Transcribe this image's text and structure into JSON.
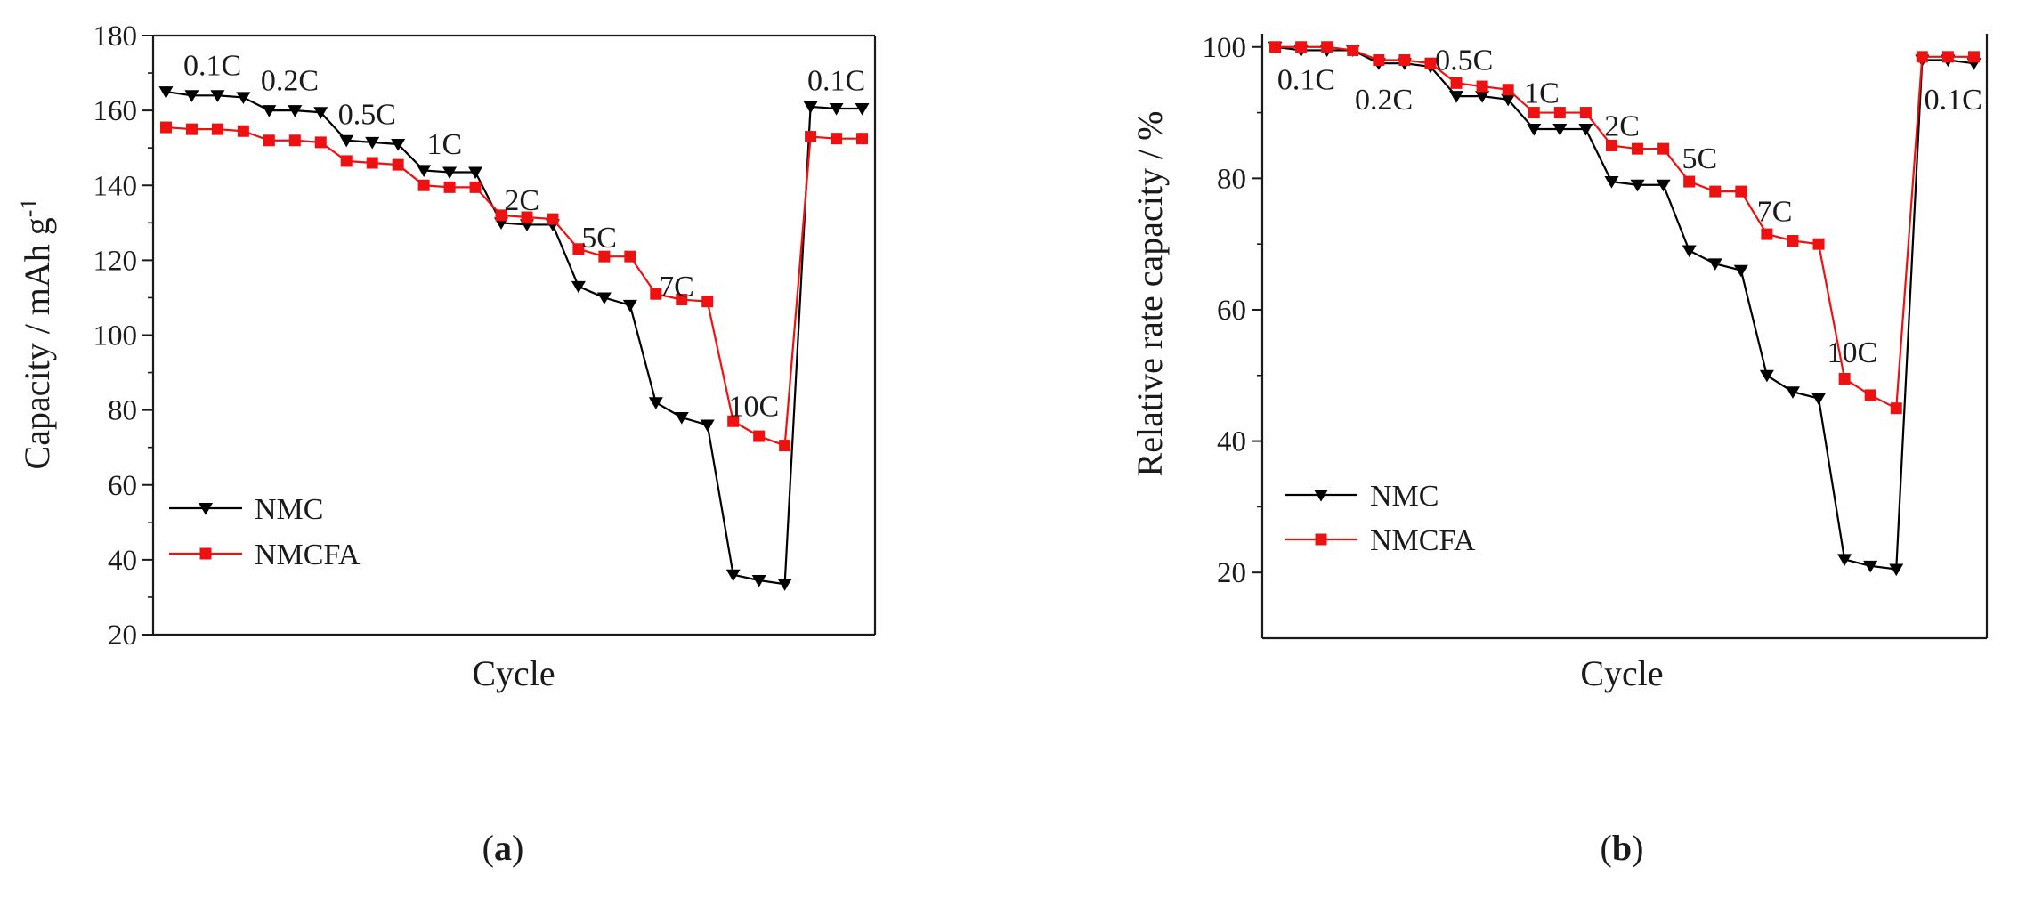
{
  "figure_labels": [
    {
      "open": "(",
      "letter": "a",
      "close": ")"
    },
    {
      "open": "(",
      "letter": "b",
      "close": ")"
    }
  ],
  "chart_data": [
    {
      "type": "line",
      "panel": "a",
      "title": "",
      "xlabel": "Cycle",
      "ylabel": "Capacity / mAh g",
      "ylabel_superscript": "-1",
      "ylim": [
        20,
        180
      ],
      "yticks": [
        20,
        40,
        60,
        80,
        100,
        120,
        140,
        160,
        180
      ],
      "ytick_labels": [
        "20",
        "40",
        "60",
        "80",
        "100",
        "120",
        "140",
        "160",
        "180"
      ],
      "xlim": [
        0.5,
        28.5
      ],
      "x_ticks_labeled": false,
      "grid": false,
      "legend_position": "lower-left",
      "x": [
        1,
        2,
        3,
        4,
        5,
        6,
        7,
        8,
        9,
        10,
        11,
        12,
        13,
        14,
        15,
        16,
        17,
        18,
        19,
        20,
        21,
        22,
        23,
        24,
        25,
        26,
        27,
        28
      ],
      "series": [
        {
          "name": "NMC",
          "color": "#000000",
          "marker": "triangle-down",
          "values": [
            165,
            164,
            164,
            163.5,
            160,
            160,
            159.5,
            152,
            151.5,
            151,
            144,
            143.5,
            143.5,
            130,
            129.5,
            129.5,
            113,
            110,
            108,
            82,
            78,
            76,
            36,
            34.5,
            33.5,
            161,
            160.5,
            160.5
          ]
        },
        {
          "name": "NMCFA",
          "color": "#ee1111",
          "marker": "square",
          "values": [
            155.5,
            155,
            155,
            154.5,
            152,
            152,
            151.5,
            146.5,
            146,
            145.5,
            140,
            139.5,
            139.5,
            132,
            131.5,
            131,
            123,
            121,
            121,
            111,
            109.5,
            109,
            77,
            73,
            70.5,
            153,
            152.5,
            152.5
          ]
        }
      ],
      "annotations": [
        {
          "text": "0.1C",
          "x": 2.8,
          "y": 172
        },
        {
          "text": "0.2C",
          "x": 5.8,
          "y": 168
        },
        {
          "text": "0.5C",
          "x": 8.8,
          "y": 159
        },
        {
          "text": "1C",
          "x": 11.8,
          "y": 151
        },
        {
          "text": "2C",
          "x": 14.8,
          "y": 136
        },
        {
          "text": "5C",
          "x": 17.8,
          "y": 126
        },
        {
          "text": "7C",
          "x": 20.8,
          "y": 113
        },
        {
          "text": "10C",
          "x": 23.8,
          "y": 81
        },
        {
          "text": "0.1C",
          "x": 27.0,
          "y": 168
        }
      ]
    },
    {
      "type": "line",
      "panel": "b",
      "title": "",
      "xlabel": "Cycle",
      "ylabel": "Relative rate capacity / %",
      "ylim": [
        10,
        102
      ],
      "yticks": [
        20,
        40,
        60,
        80,
        100
      ],
      "ytick_labels": [
        "20",
        "40",
        "60",
        "80",
        "100"
      ],
      "xlim": [
        0.5,
        28.5
      ],
      "x_ticks_labeled": false,
      "grid": false,
      "legend_position": "lower-left",
      "x": [
        1,
        2,
        3,
        4,
        5,
        6,
        7,
        8,
        9,
        10,
        11,
        12,
        13,
        14,
        15,
        16,
        17,
        18,
        19,
        20,
        21,
        22,
        23,
        24,
        25,
        26,
        27,
        28
      ],
      "series": [
        {
          "name": "NMC",
          "color": "#000000",
          "marker": "triangle-down",
          "values": [
            100,
            99.5,
            99.5,
            99.5,
            97.5,
            97.5,
            97,
            92.5,
            92.5,
            92,
            87.5,
            87.5,
            87.5,
            79.5,
            79,
            79,
            69,
            67,
            66,
            50,
            47.5,
            46.5,
            22,
            21,
            20.5,
            98,
            98,
            97.5
          ]
        },
        {
          "name": "NMCFA",
          "color": "#ee1111",
          "marker": "square",
          "values": [
            100,
            100,
            100,
            99.5,
            98,
            98,
            97.5,
            94.5,
            94,
            93.5,
            90,
            90,
            90,
            85,
            84.5,
            84.5,
            79.5,
            78,
            78,
            71.5,
            70.5,
            70,
            49.5,
            47,
            45,
            98.5,
            98.5,
            98.5
          ]
        }
      ],
      "annotations": [
        {
          "text": "0.1C",
          "x": 2.2,
          "y": 95
        },
        {
          "text": "0.2C",
          "x": 5.2,
          "y": 92
        },
        {
          "text": "0.5C",
          "x": 8.3,
          "y": 98
        },
        {
          "text": "1C",
          "x": 11.3,
          "y": 93
        },
        {
          "text": "2C",
          "x": 14.4,
          "y": 88
        },
        {
          "text": "5C",
          "x": 17.4,
          "y": 83
        },
        {
          "text": "7C",
          "x": 20.3,
          "y": 75
        },
        {
          "text": "10C",
          "x": 23.3,
          "y": 53.5
        },
        {
          "text": "0.1C",
          "x": 27.2,
          "y": 92
        }
      ]
    }
  ]
}
